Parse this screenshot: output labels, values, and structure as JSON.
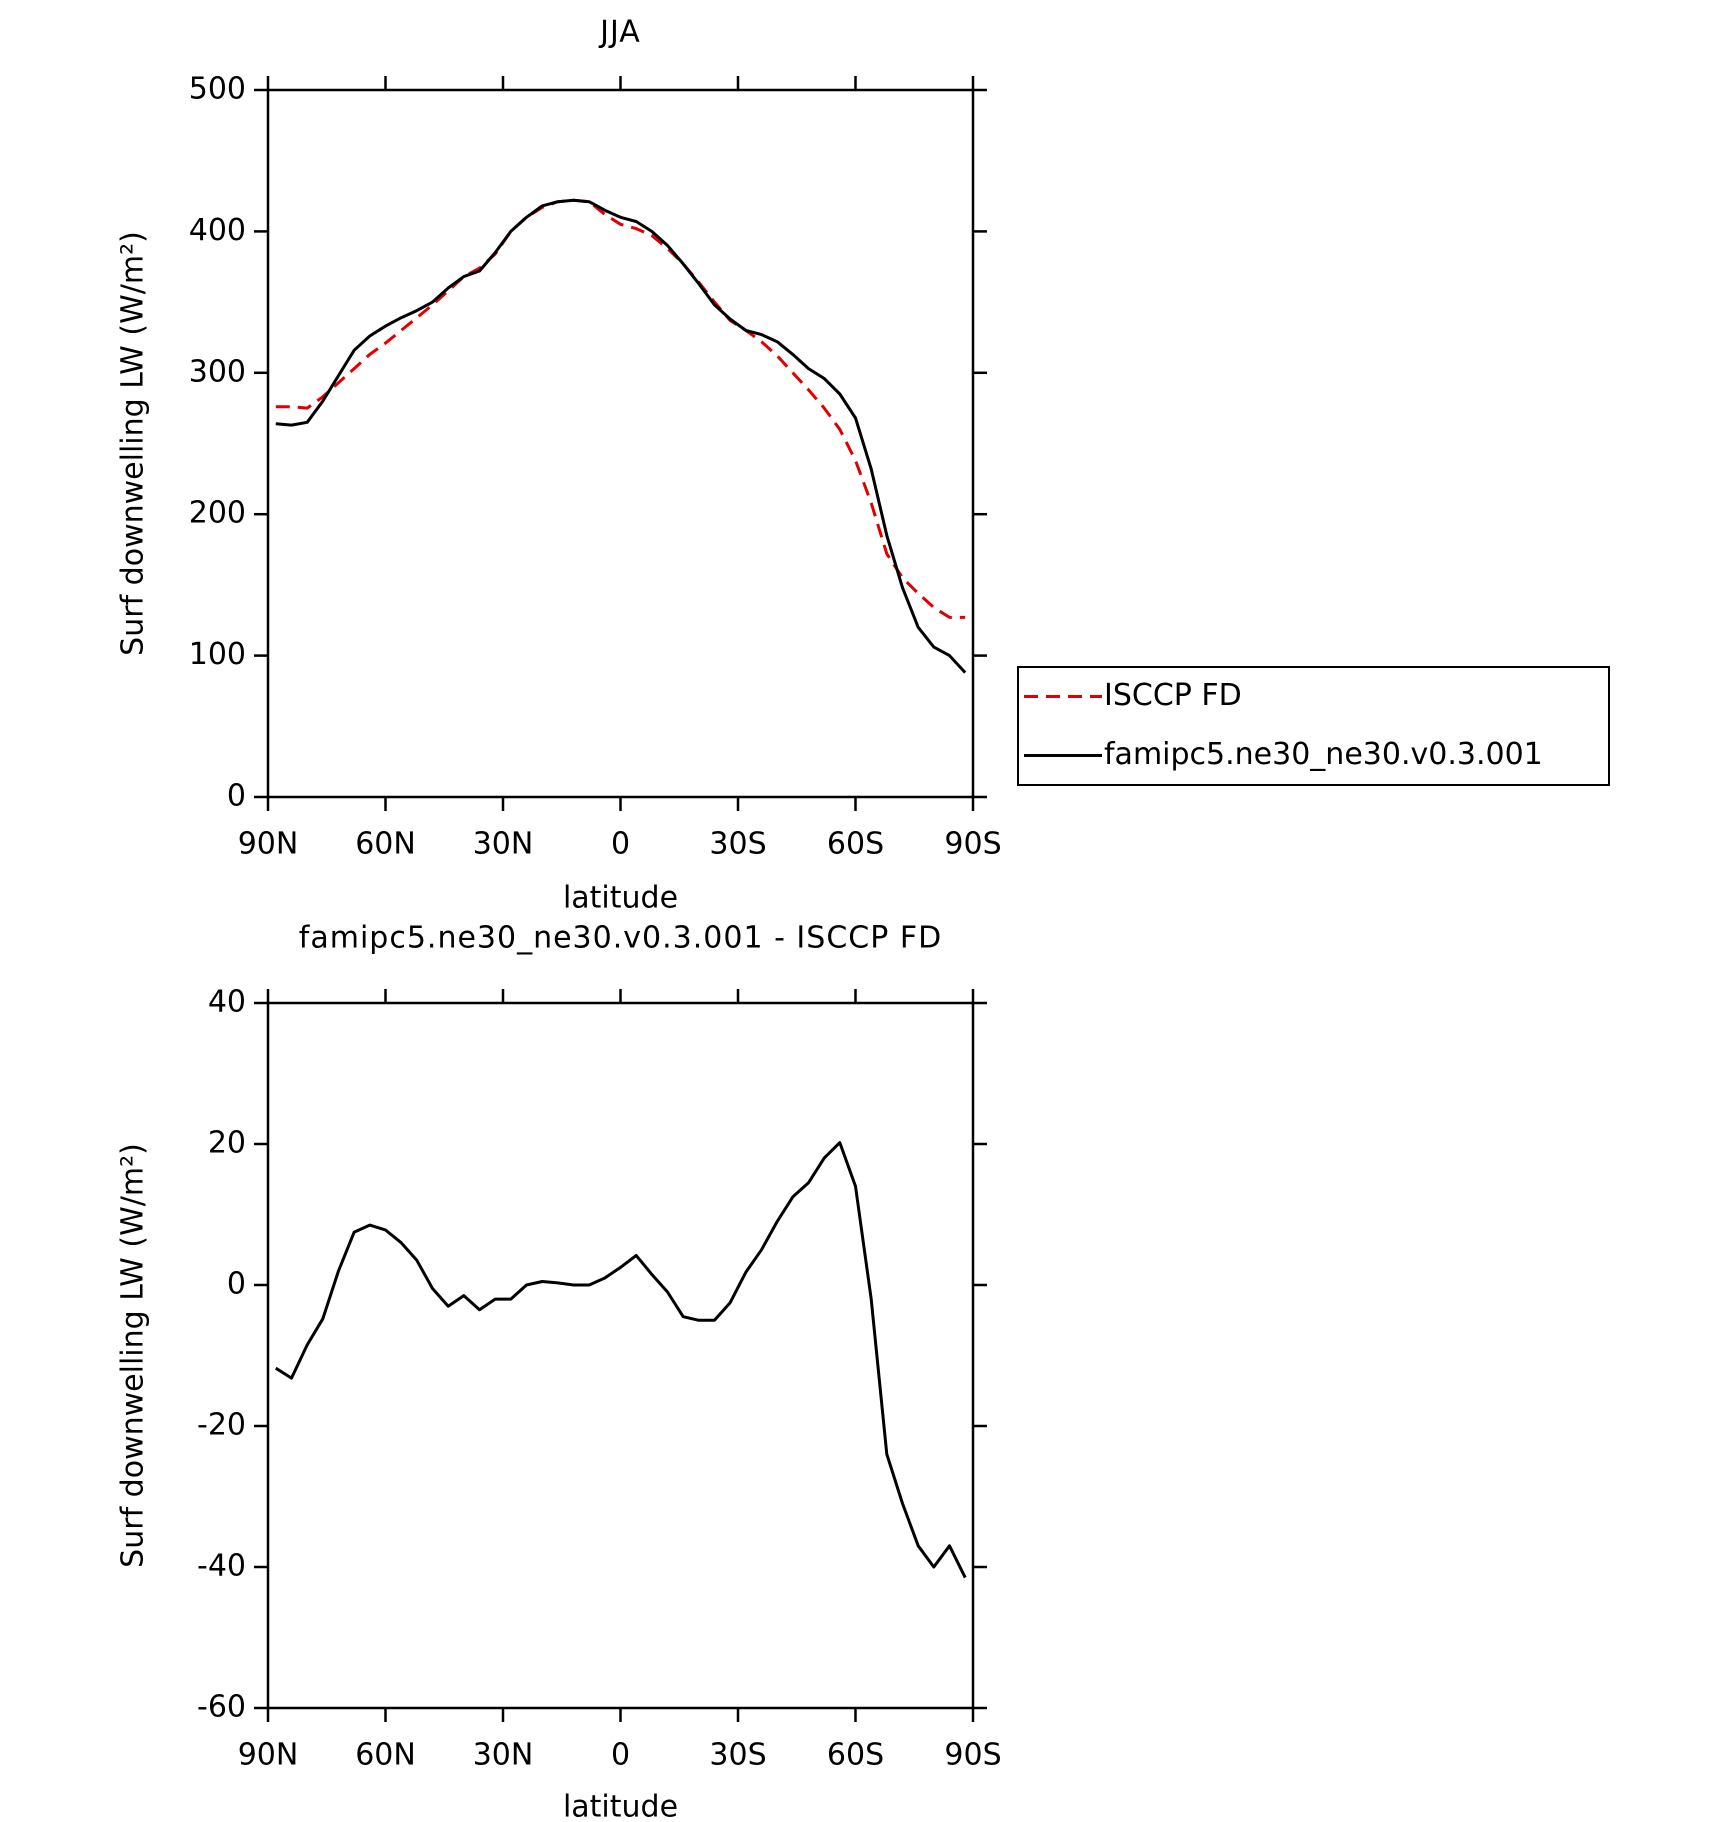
{
  "chart_data": [
    {
      "type": "line",
      "title": "JJA",
      "xlabel": "latitude",
      "ylabel": "Surf downwelling LW (W/m²)",
      "xlim": [
        90,
        -90
      ],
      "xticks": [
        {
          "value": 90,
          "label": "90N"
        },
        {
          "value": 60,
          "label": "60N"
        },
        {
          "value": 30,
          "label": "30N"
        },
        0,
        {
          "value": -30,
          "label": "30S"
        },
        {
          "value": -60,
          "label": "60S"
        },
        {
          "value": -90,
          "label": "90S"
        }
      ],
      "ylim": [
        0,
        500
      ],
      "yticks": [
        0,
        100,
        200,
        300,
        400,
        500
      ],
      "legend": "right",
      "x": [
        88,
        84,
        80,
        76,
        72,
        68,
        64,
        60,
        56,
        52,
        48,
        44,
        40,
        36,
        32,
        28,
        24,
        20,
        16,
        12,
        8,
        4,
        0,
        -4,
        -8,
        -12,
        -16,
        -20,
        -24,
        -28,
        -32,
        -36,
        -40,
        -44,
        -48,
        -52,
        -56,
        -60,
        -64,
        -68,
        -72,
        -76,
        -80,
        -84,
        -88
      ],
      "series": [
        {
          "name": "ISCCP FD",
          "color": "#e00000",
          "style": "dashed",
          "values": [
            276,
            276,
            275,
            283,
            293,
            303,
            313,
            321,
            330,
            339,
            348,
            358,
            368,
            374,
            384,
            400,
            410,
            417,
            421,
            422,
            421,
            412,
            405,
            402,
            397,
            388,
            377,
            364,
            350,
            337,
            330,
            322,
            312,
            300,
            288,
            275,
            260,
            238,
            208,
            172,
            155,
            144,
            134,
            127,
            127
          ]
        },
        {
          "name": "famipc5.ne30_ne30.v0.3.001",
          "color": "#000000",
          "style": "solid",
          "values": [
            264,
            263,
            265,
            280,
            298,
            316,
            326,
            333,
            339,
            344,
            350,
            360,
            368,
            372,
            385,
            400,
            410,
            418,
            421,
            422,
            421,
            415,
            410,
            407,
            400,
            390,
            377,
            363,
            348,
            338,
            330,
            327,
            322,
            313,
            303,
            296,
            285,
            268,
            232,
            185,
            148,
            120,
            106,
            100,
            88
          ]
        }
      ]
    },
    {
      "type": "line",
      "title": "famipc5.ne30_ne30.v0.3.001 - ISCCP FD",
      "xlabel": "latitude",
      "ylabel": "Surf downwelling LW (W/m²)",
      "xlim": [
        90,
        -90
      ],
      "xticks": [
        {
          "value": 90,
          "label": "90N"
        },
        {
          "value": 60,
          "label": "60N"
        },
        {
          "value": 30,
          "label": "30N"
        },
        0,
        {
          "value": -30,
          "label": "30S"
        },
        {
          "value": -60,
          "label": "60S"
        },
        {
          "value": -90,
          "label": "90S"
        }
      ],
      "ylim": [
        -60,
        40
      ],
      "yticks": [
        -60,
        -40,
        -20,
        0,
        20,
        40
      ],
      "x": [
        88,
        84,
        80,
        76,
        72,
        68,
        64,
        60,
        56,
        52,
        48,
        44,
        40,
        36,
        32,
        28,
        24,
        20,
        16,
        12,
        8,
        4,
        0,
        -4,
        -8,
        -12,
        -16,
        -20,
        -24,
        -28,
        -32,
        -36,
        -40,
        -44,
        -48,
        -52,
        -56,
        -60,
        -64,
        -68,
        -72,
        -76,
        -80,
        -84,
        -88
      ],
      "series": [
        {
          "color": "#000000",
          "style": "solid",
          "values": [
            -11.8,
            -13.2,
            -8.5,
            -4.8,
            2,
            7.5,
            8.5,
            7.8,
            6,
            3.5,
            -0.5,
            -3,
            -1.5,
            -3.5,
            -2,
            -2,
            0,
            0.5,
            0.3,
            0,
            0,
            1,
            2.5,
            4.2,
            1.5,
            -1,
            -4.5,
            -5,
            -5,
            -2.5,
            1.8,
            5,
            9,
            12.5,
            14.5,
            18,
            20.2,
            14,
            -2,
            -24,
            -31,
            -37,
            -40,
            -37,
            -41.5
          ]
        }
      ]
    }
  ]
}
